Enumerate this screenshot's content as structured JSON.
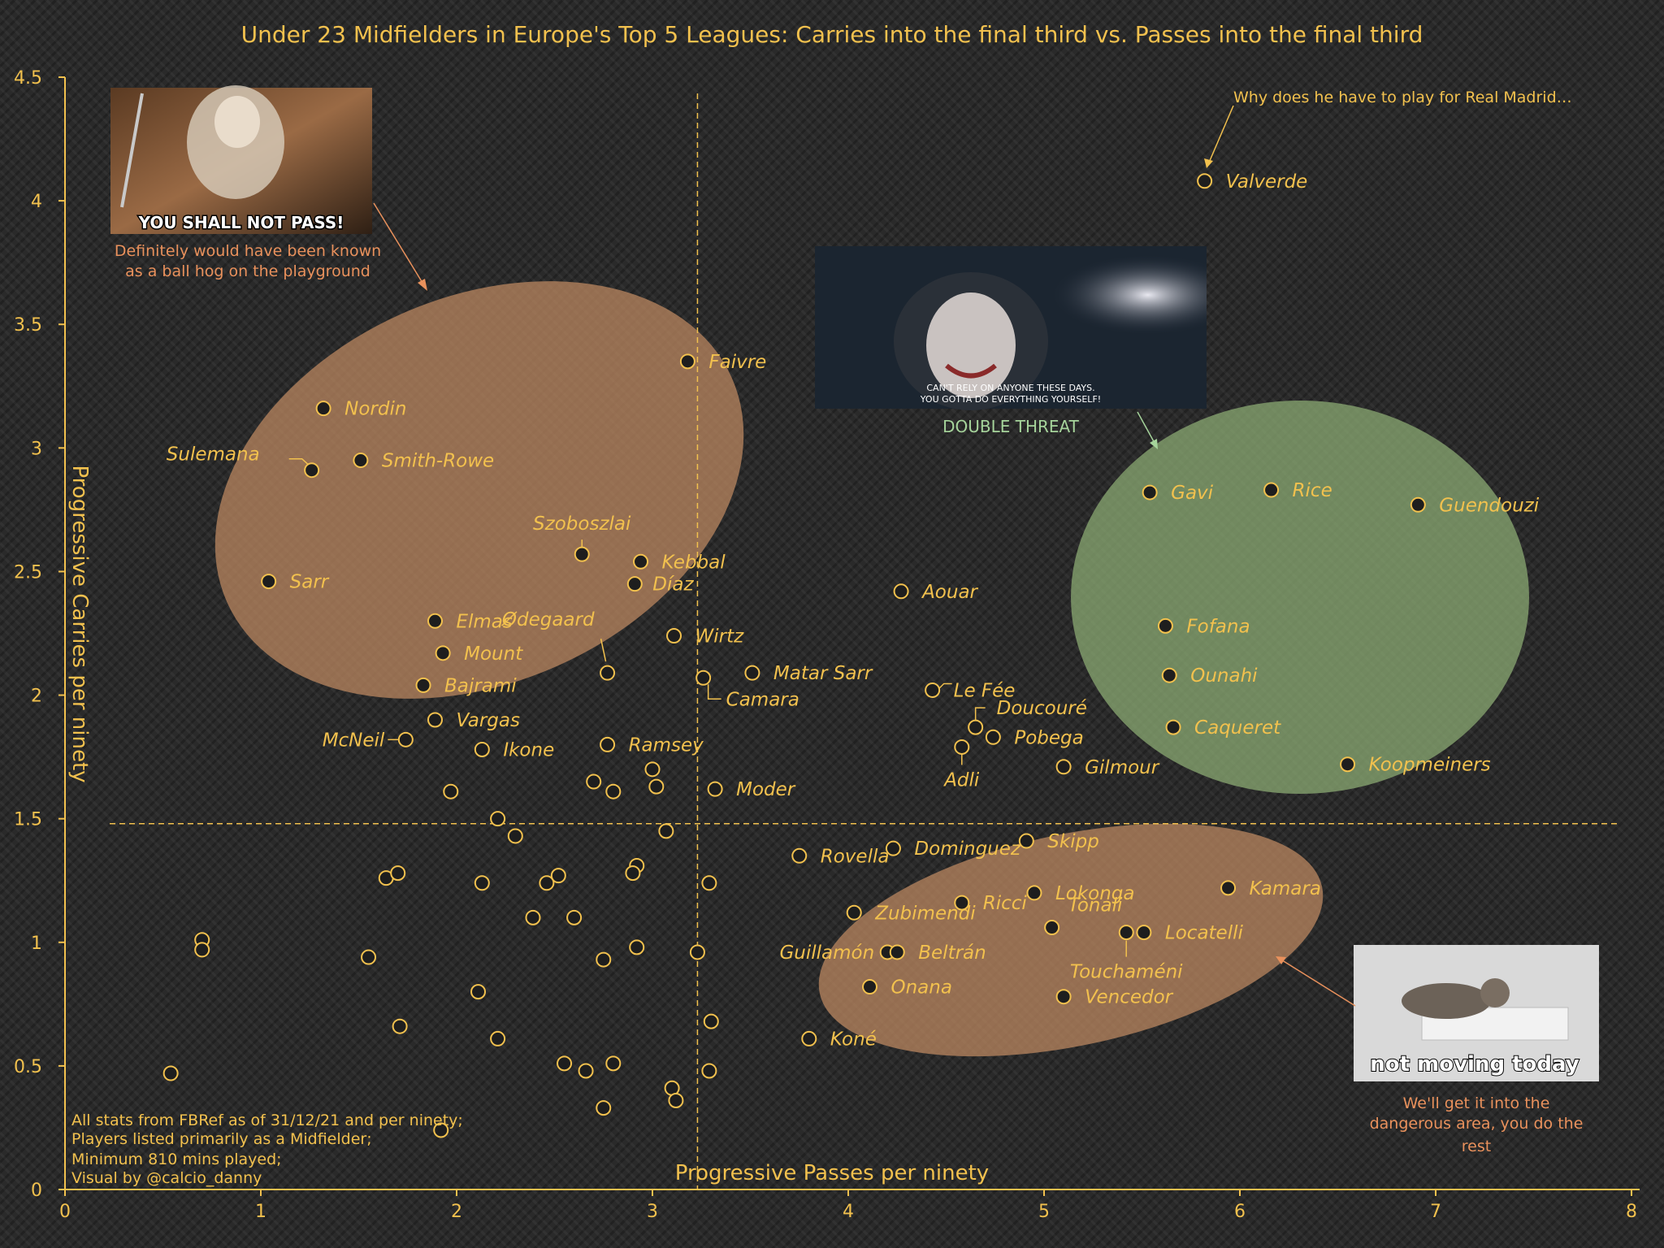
{
  "chart_data": {
    "type": "scatter",
    "title": "Under 23 Midfielders in Europe's Top 5 Leagues: Carries into the final third vs. Passes into the final third",
    "xlabel": "Progressive Passes per ninety",
    "ylabel": "Progressive Carries per ninety",
    "xlim": [
      0,
      8
    ],
    "ylim": [
      0,
      4.5
    ],
    "x_ticks": [
      "0",
      "1",
      "2",
      "3",
      "4",
      "5",
      "6",
      "7",
      "8"
    ],
    "y_ticks": [
      "0",
      "0.5",
      "1",
      "1.5",
      "2",
      "2.5",
      "3",
      "3.5",
      "4",
      "4.5"
    ],
    "reference_lines": {
      "x": 3.23,
      "y": 1.48
    },
    "grid": false,
    "colors": {
      "accent": "#f2c14e",
      "point_fill": "#1e1e1e",
      "orange_ellipse": "#c08a63",
      "green_ellipse": "#8fae76"
    },
    "points": [
      {
        "x": 5.82,
        "y": 4.08,
        "label": "Valverde"
      },
      {
        "x": 3.18,
        "y": 3.35,
        "label": "Faivre"
      },
      {
        "x": 1.32,
        "y": 3.16,
        "label": "Nordin"
      },
      {
        "x": 1.26,
        "y": 2.91,
        "label": "Sulemana"
      },
      {
        "x": 1.51,
        "y": 2.95,
        "label": "Smith-Rowe"
      },
      {
        "x": 1.04,
        "y": 2.46,
        "label": "Sarr"
      },
      {
        "x": 2.64,
        "y": 2.57,
        "label": "Szoboszlai"
      },
      {
        "x": 2.94,
        "y": 2.54,
        "label": "Kebbal"
      },
      {
        "x": 2.91,
        "y": 2.45,
        "label": "Díaz"
      },
      {
        "x": 1.89,
        "y": 2.3,
        "label": "Elmas"
      },
      {
        "x": 2.77,
        "y": 2.09,
        "label": "Ødegaard"
      },
      {
        "x": 3.11,
        "y": 2.24,
        "label": "Wirtz"
      },
      {
        "x": 1.93,
        "y": 2.17,
        "label": "Mount"
      },
      {
        "x": 3.26,
        "y": 2.07,
        "label": "Camara"
      },
      {
        "x": 3.51,
        "y": 2.09,
        "label": "Matar Sarr"
      },
      {
        "x": 1.83,
        "y": 2.04,
        "label": "Bajrami"
      },
      {
        "x": 1.89,
        "y": 1.9,
        "label": "Vargas"
      },
      {
        "x": 1.74,
        "y": 1.82,
        "label": "McNeil"
      },
      {
        "x": 2.13,
        "y": 1.78,
        "label": "Ikone"
      },
      {
        "x": 2.77,
        "y": 1.8,
        "label": "Ramsey"
      },
      {
        "x": 3.32,
        "y": 1.62,
        "label": "Moder"
      },
      {
        "x": 4.27,
        "y": 2.42,
        "label": "Aouar"
      },
      {
        "x": 4.43,
        "y": 2.02,
        "label": "Le Fée"
      },
      {
        "x": 4.65,
        "y": 1.87,
        "label": "Doucouré"
      },
      {
        "x": 4.74,
        "y": 1.83,
        "label": "Pobega"
      },
      {
        "x": 4.58,
        "y": 1.79,
        "label": "Adli"
      },
      {
        "x": 5.1,
        "y": 1.71,
        "label": "Gilmour"
      },
      {
        "x": 5.54,
        "y": 2.82,
        "label": "Gavi"
      },
      {
        "x": 6.16,
        "y": 2.83,
        "label": "Rice"
      },
      {
        "x": 6.91,
        "y": 2.77,
        "label": "Guendouzi"
      },
      {
        "x": 5.62,
        "y": 2.28,
        "label": "Fofana"
      },
      {
        "x": 5.64,
        "y": 2.08,
        "label": "Ounahi"
      },
      {
        "x": 5.66,
        "y": 1.87,
        "label": "Caqueret"
      },
      {
        "x": 6.55,
        "y": 1.72,
        "label": "Koopmeiners"
      },
      {
        "x": 3.75,
        "y": 1.35,
        "label": "Rovella"
      },
      {
        "x": 4.23,
        "y": 1.38,
        "label": "Dominguez"
      },
      {
        "x": 4.91,
        "y": 1.41,
        "label": "Skipp"
      },
      {
        "x": 4.95,
        "y": 1.2,
        "label": "Lokonga"
      },
      {
        "x": 5.94,
        "y": 1.22,
        "label": "Kamara"
      },
      {
        "x": 4.58,
        "y": 1.16,
        "label": "Ricci"
      },
      {
        "x": 4.03,
        "y": 1.12,
        "label": "Zubimendi"
      },
      {
        "x": 5.04,
        "y": 1.06,
        "label": "Tonali"
      },
      {
        "x": 5.42,
        "y": 1.04,
        "label": "Touchaméni"
      },
      {
        "x": 5.51,
        "y": 1.04,
        "label": "Locatelli"
      },
      {
        "x": 4.2,
        "y": 0.96,
        "label": "Guillamón"
      },
      {
        "x": 4.25,
        "y": 0.96,
        "label": "Beltrán"
      },
      {
        "x": 4.11,
        "y": 0.82,
        "label": "Onana"
      },
      {
        "x": 5.1,
        "y": 0.78,
        "label": "Vencedor"
      },
      {
        "x": 3.8,
        "y": 0.61,
        "label": "Koné"
      },
      {
        "x": 1.97,
        "y": 1.61,
        "label": ""
      },
      {
        "x": 2.7,
        "y": 1.65,
        "label": ""
      },
      {
        "x": 2.8,
        "y": 1.61,
        "label": ""
      },
      {
        "x": 3.0,
        "y": 1.7,
        "label": ""
      },
      {
        "x": 3.02,
        "y": 1.63,
        "label": ""
      },
      {
        "x": 2.21,
        "y": 1.5,
        "label": ""
      },
      {
        "x": 2.3,
        "y": 1.43,
        "label": ""
      },
      {
        "x": 3.07,
        "y": 1.45,
        "label": ""
      },
      {
        "x": 1.64,
        "y": 1.26,
        "label": ""
      },
      {
        "x": 1.7,
        "y": 1.28,
        "label": ""
      },
      {
        "x": 2.13,
        "y": 1.24,
        "label": ""
      },
      {
        "x": 2.46,
        "y": 1.24,
        "label": ""
      },
      {
        "x": 2.52,
        "y": 1.27,
        "label": ""
      },
      {
        "x": 2.92,
        "y": 1.31,
        "label": ""
      },
      {
        "x": 2.9,
        "y": 1.28,
        "label": ""
      },
      {
        "x": 3.29,
        "y": 1.24,
        "label": ""
      },
      {
        "x": 2.39,
        "y": 1.1,
        "label": ""
      },
      {
        "x": 2.6,
        "y": 1.1,
        "label": ""
      },
      {
        "x": 0.7,
        "y": 1.01,
        "label": ""
      },
      {
        "x": 0.7,
        "y": 0.97,
        "label": ""
      },
      {
        "x": 1.55,
        "y": 0.94,
        "label": ""
      },
      {
        "x": 2.75,
        "y": 0.93,
        "label": ""
      },
      {
        "x": 2.92,
        "y": 0.98,
        "label": ""
      },
      {
        "x": 3.23,
        "y": 0.96,
        "label": ""
      },
      {
        "x": 2.11,
        "y": 0.8,
        "label": ""
      },
      {
        "x": 1.71,
        "y": 0.66,
        "label": ""
      },
      {
        "x": 2.21,
        "y": 0.61,
        "label": ""
      },
      {
        "x": 3.3,
        "y": 0.68,
        "label": ""
      },
      {
        "x": 2.55,
        "y": 0.51,
        "label": ""
      },
      {
        "x": 2.66,
        "y": 0.48,
        "label": ""
      },
      {
        "x": 2.8,
        "y": 0.51,
        "label": ""
      },
      {
        "x": 3.29,
        "y": 0.48,
        "label": ""
      },
      {
        "x": 0.54,
        "y": 0.47,
        "label": ""
      },
      {
        "x": 3.1,
        "y": 0.41,
        "label": ""
      },
      {
        "x": 3.12,
        "y": 0.36,
        "label": ""
      },
      {
        "x": 2.75,
        "y": 0.33,
        "label": ""
      },
      {
        "x": 1.92,
        "y": 0.24,
        "label": ""
      }
    ],
    "annotations": {
      "gandalf_meme": "YOU SHALL NOT PASS!",
      "gandalf_caption_1": "Definitely would have been known",
      "gandalf_caption_2": "as a ball hog on the playground",
      "joker_meme_1": "CAN'T RELY ON ANYONE THESE DAYS.",
      "joker_meme_2": "YOU GOTTA DO EVERYTHING YOURSELF!",
      "joker_caption": "DOUBLE THREAT",
      "valverde_note": "Why does he have to play for Real Madrid…",
      "cat_meme": "not moving today",
      "cat_caption_1": "We'll get it into the",
      "cat_caption_2": "dangerous area, you do the",
      "cat_caption_3": "rest"
    },
    "footnote": [
      "All stats from FBRef as of 31/12/21 and per ninety;",
      "Players listed primarily as a Midfielder;",
      "Minimum 810 mins played;",
      "Visual by @calcio_danny"
    ]
  }
}
